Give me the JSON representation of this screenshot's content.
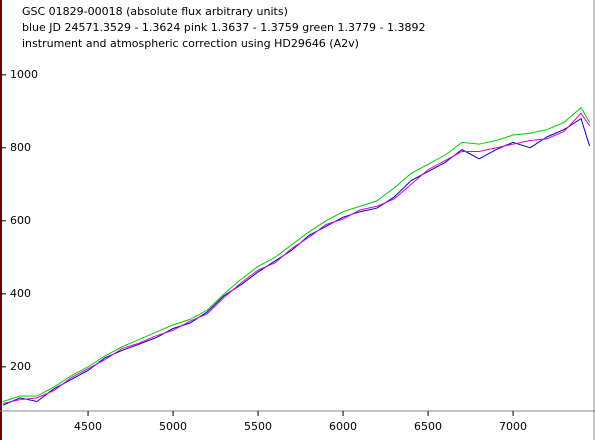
{
  "chart_data": {
    "type": "line",
    "title_lines": [
      "GSC 01829-00018  (absolute flux arbitrary units)",
      "blue JD 24571.3529 - 1.3624   pink 1.3637 - 1.3759  green 1.3779 - 1.3892",
      "instrument and atmospheric correction using HD29646 (A2v)"
    ],
    "x": [
      4000,
      4100,
      4200,
      4300,
      4400,
      4500,
      4600,
      4700,
      4800,
      4900,
      5000,
      5100,
      5200,
      5300,
      5400,
      5500,
      5600,
      5700,
      5800,
      5900,
      6000,
      6100,
      6200,
      6300,
      6400,
      6500,
      6600,
      6700,
      6800,
      6900,
      7000,
      7100,
      7200,
      7300,
      7400,
      7450
    ],
    "series": [
      {
        "name": "blue",
        "color": "#0000cc",
        "values": [
          95,
          115,
          105,
          140,
          165,
          190,
          225,
          245,
          262,
          280,
          305,
          320,
          350,
          395,
          425,
          460,
          490,
          520,
          560,
          585,
          610,
          625,
          635,
          665,
          710,
          735,
          760,
          795,
          770,
          795,
          815,
          800,
          830,
          850,
          880,
          805
        ]
      },
      {
        "name": "pink",
        "color": "#dd00dd",
        "values": [
          100,
          110,
          115,
          135,
          170,
          195,
          220,
          250,
          265,
          285,
          300,
          325,
          345,
          390,
          430,
          465,
          485,
          525,
          555,
          590,
          605,
          630,
          640,
          660,
          700,
          740,
          765,
          790,
          790,
          800,
          810,
          820,
          825,
          845,
          895,
          860
        ]
      },
      {
        "name": "green",
        "color": "#00cc00",
        "values": [
          105,
          120,
          120,
          145,
          175,
          200,
          230,
          255,
          275,
          295,
          315,
          330,
          355,
          400,
          440,
          475,
          500,
          535,
          570,
          600,
          625,
          640,
          655,
          690,
          730,
          755,
          780,
          815,
          810,
          820,
          835,
          840,
          850,
          870,
          910,
          870
        ]
      }
    ],
    "xlim": [
      3982,
      7482
    ],
    "ylim": [
      79,
      1205
    ],
    "xticks": [
      4500,
      5000,
      5500,
      6000,
      6500,
      7000
    ],
    "yticks": [
      200,
      400,
      600,
      800,
      1000
    ]
  }
}
